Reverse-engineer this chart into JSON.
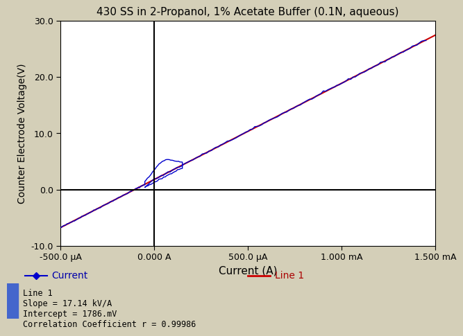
{
  "title": "430 SS in 2-Propanol, 1% Acetate Buffer (0.1N, aqueous)",
  "xlabel": "Current (A)",
  "ylabel": "Counter Electrode Voltage(V)",
  "xlim": [
    -0.0005,
    0.0015
  ],
  "ylim": [
    -10.0,
    30.0
  ],
  "xticks": [
    -0.0005,
    0.0,
    0.0005,
    0.001,
    0.0015
  ],
  "xticklabels": [
    "-500.0 μA",
    "0.000 A",
    "500.0 μA",
    "1.000 mA",
    "1.500 mA"
  ],
  "yticks": [
    -10.0,
    0.0,
    10.0,
    20.0,
    30.0
  ],
  "yticklabels": [
    "-10.0",
    "0.0",
    "10.0",
    "20.0",
    "30.0"
  ],
  "bg_color": "#d4cfb8",
  "plot_bg_color": "#ffffff",
  "line1_color": "#0000cc",
  "line2_color": "#cc0000",
  "slope": 17140.0,
  "intercept": 1.786,
  "legend_current": "Current",
  "legend_line1": "Line 1",
  "info_text": "Line 1\nSlope = 17.14 kV/A\nIntercept = 1786.mV\nCorrelation Coefficient r = 0.99986",
  "vline_x": 0.0,
  "hline_y": 0.0
}
